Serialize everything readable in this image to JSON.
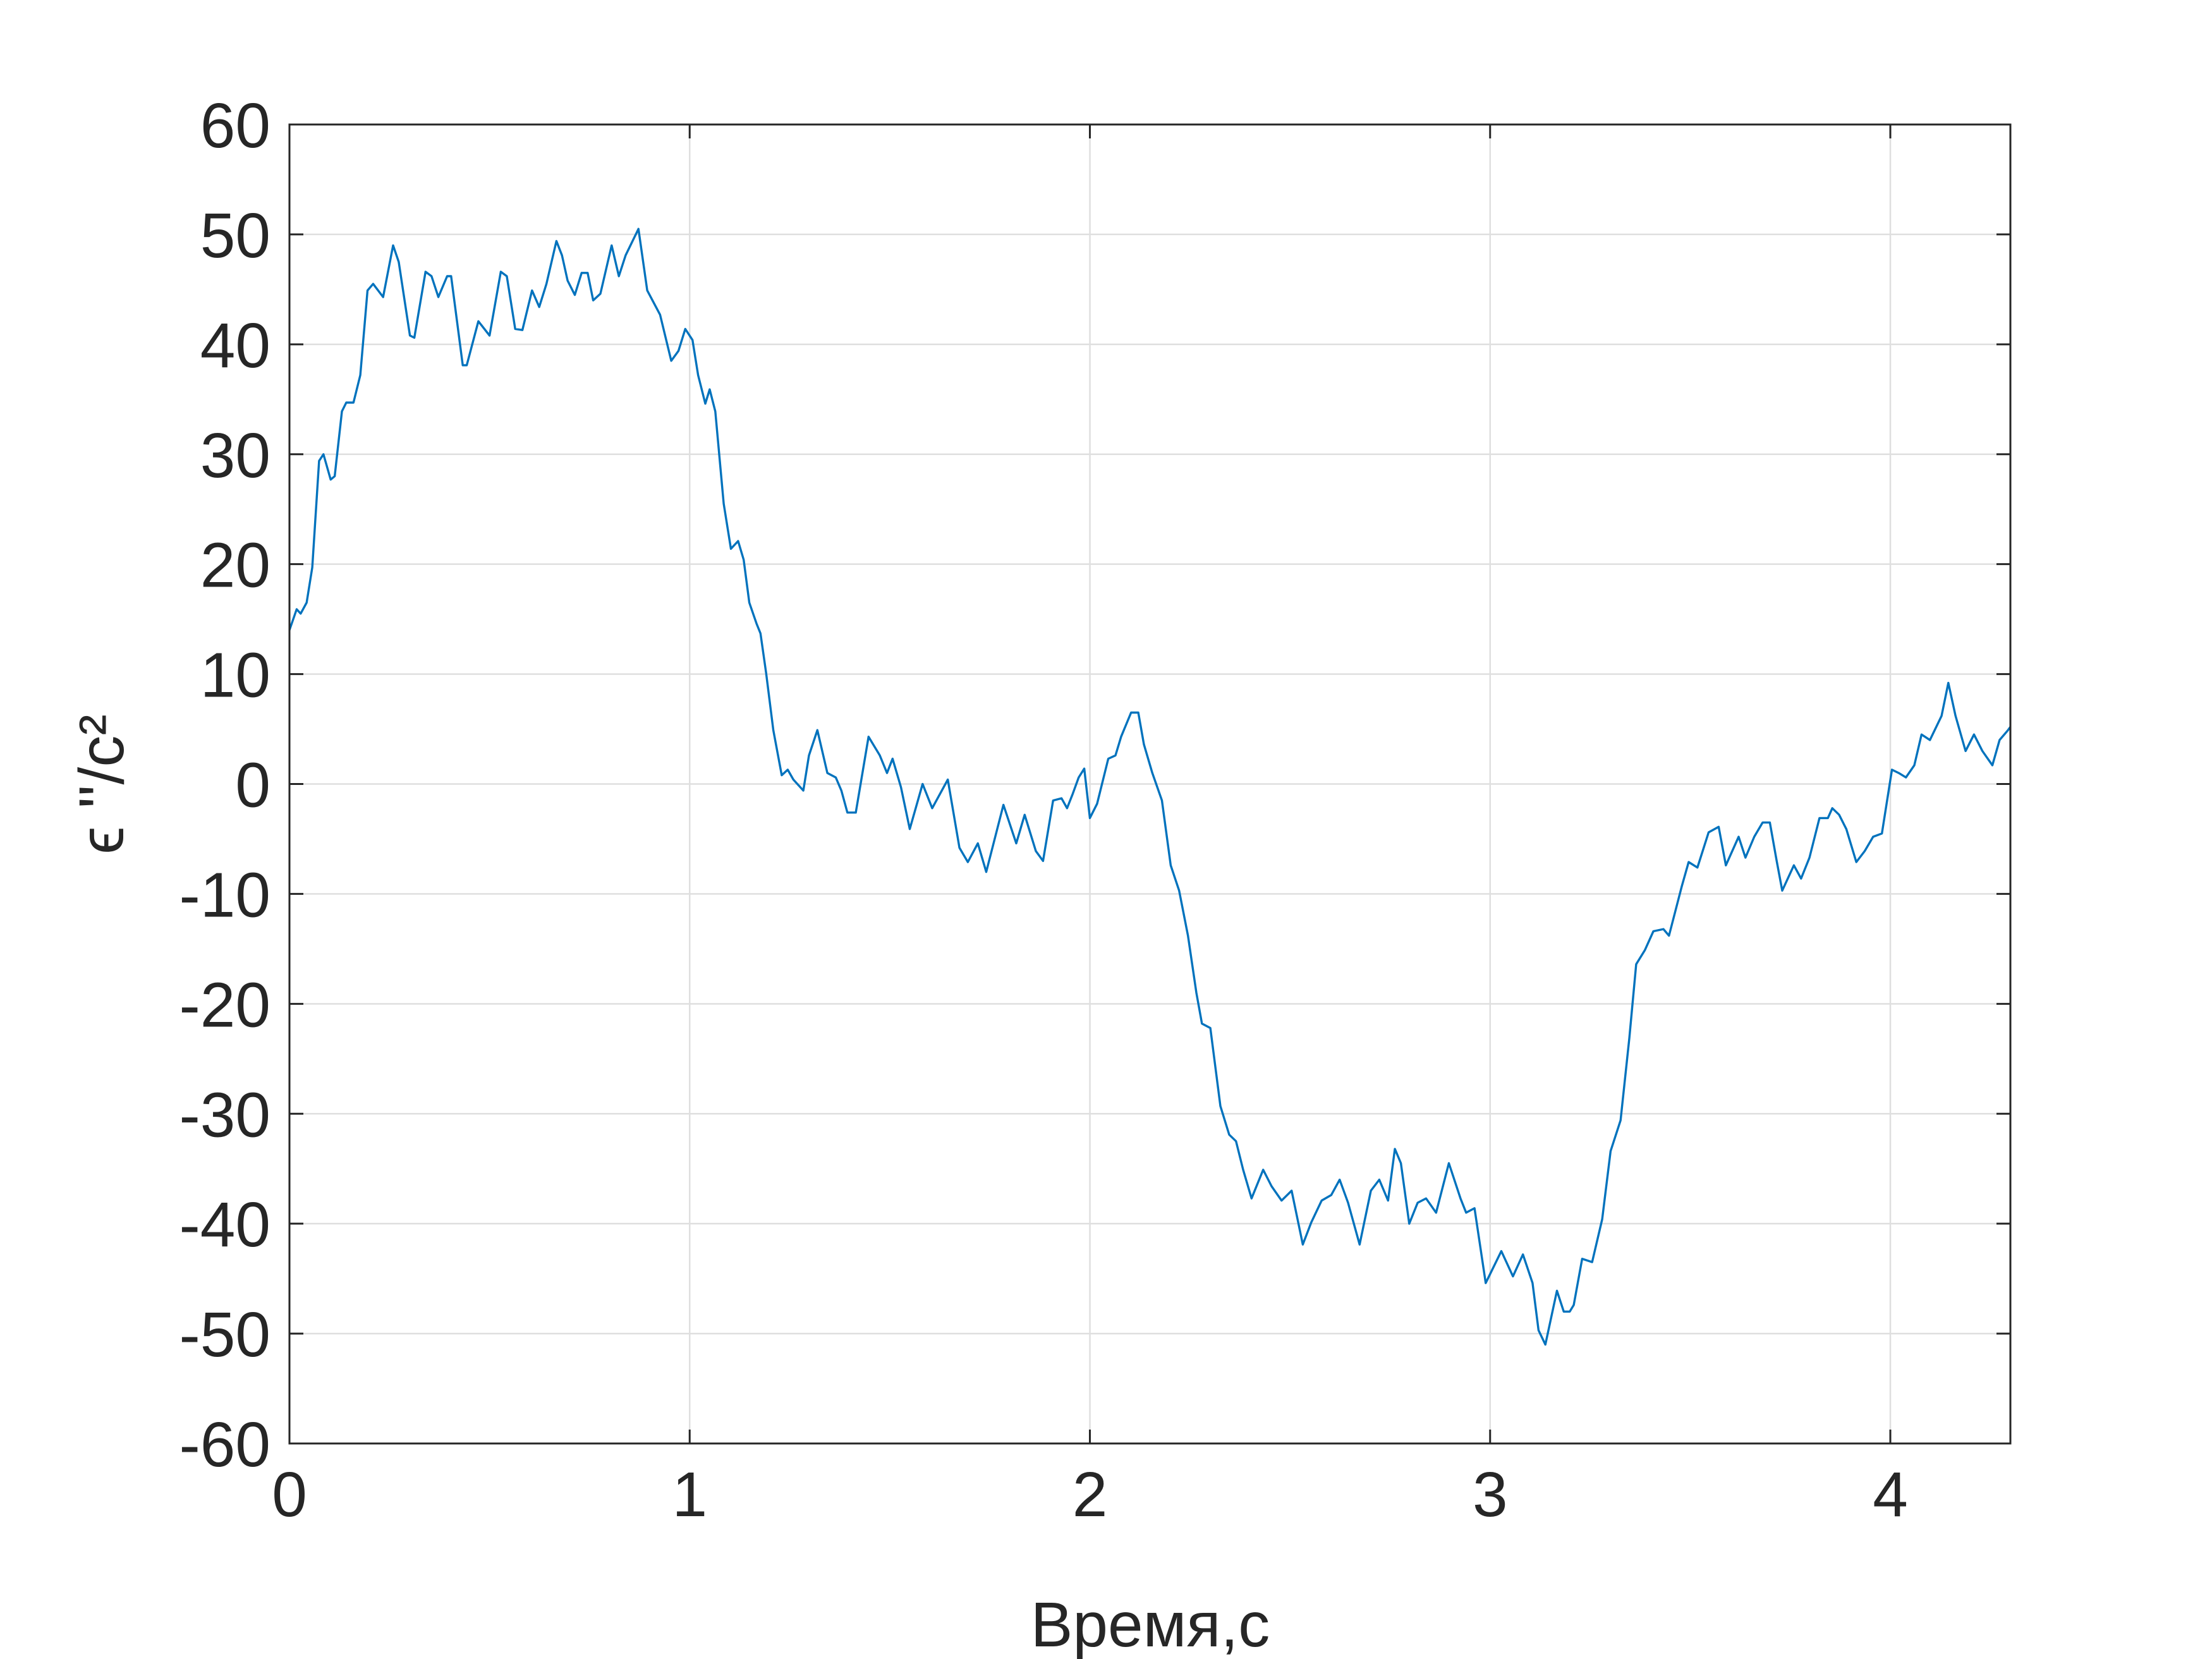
{
  "chart_data": {
    "type": "line",
    "xlabel": "Время,с",
    "ylabel": "ϵ ''/с²",
    "xlim": [
      0,
      4.3
    ],
    "xticks": [
      0,
      1,
      2,
      3,
      4
    ],
    "ylim": [
      -60,
      60
    ],
    "yticks": [
      -60,
      -50,
      -40,
      -30,
      -20,
      -10,
      0,
      10,
      20,
      30,
      40,
      50,
      60
    ],
    "grid": true,
    "color": "#0072bd",
    "x": [
      0,
      0.018,
      0.028,
      0.043,
      0.057,
      0.074,
      0.085,
      0.103,
      0.113,
      0.131,
      0.142,
      0.16,
      0.177,
      0.195,
      0.209,
      0.234,
      0.259,
      0.273,
      0.301,
      0.312,
      0.34,
      0.355,
      0.372,
      0.394,
      0.404,
      0.433,
      0.443,
      0.472,
      0.5,
      0.528,
      0.543,
      0.564,
      0.582,
      0.606,
      0.624,
      0.642,
      0.667,
      0.681,
      0.695,
      0.713,
      0.73,
      0.745,
      0.759,
      0.777,
      0.805,
      0.823,
      0.84,
      0.872,
      0.894,
      0.926,
      0.954,
      0.972,
      0.989,
      1.007,
      1.021,
      1.039,
      1.05,
      1.064,
      1.085,
      1.103,
      1.121,
      1.135,
      1.149,
      1.167,
      1.177,
      1.191,
      1.209,
      1.23,
      1.245,
      1.259,
      1.284,
      1.298,
      1.319,
      1.344,
      1.365,
      1.379,
      1.394,
      1.415,
      1.447,
      1.475,
      1.493,
      1.507,
      1.528,
      1.55,
      1.582,
      1.606,
      1.645,
      1.674,
      1.695,
      1.72,
      1.741,
      1.784,
      1.816,
      1.837,
      1.865,
      1.883,
      1.908,
      1.929,
      1.943,
      1.957,
      1.972,
      1.986,
      2,
      2.018,
      2.046,
      2.064,
      2.078,
      2.103,
      2.121,
      2.135,
      2.156,
      2.18,
      2.202,
      2.223,
      2.245,
      2.266,
      2.28,
      2.301,
      2.326,
      2.348,
      2.365,
      2.383,
      2.404,
      2.433,
      2.454,
      2.479,
      2.504,
      2.532,
      2.553,
      2.579,
      2.603,
      2.624,
      2.645,
      2.674,
      2.702,
      2.723,
      2.745,
      2.762,
      2.777,
      2.798,
      2.819,
      2.84,
      2.865,
      2.897,
      2.926,
      2.94,
      2.961,
      2.989,
      3.028,
      3.057,
      3.082,
      3.106,
      3.121,
      3.138,
      3.167,
      3.184,
      3.199,
      3.209,
      3.23,
      3.255,
      3.28,
      3.301,
      3.326,
      3.348,
      3.365,
      3.387,
      3.408,
      3.433,
      3.447,
      3.479,
      3.496,
      3.518,
      3.546,
      3.571,
      3.589,
      3.621,
      3.638,
      3.66,
      3.681,
      3.699,
      3.716,
      3.73,
      3.759,
      3.777,
      3.798,
      3.823,
      3.844,
      3.855,
      3.872,
      3.89,
      3.915,
      3.936,
      3.957,
      3.979,
      4.004,
      4.021,
      4.039,
      4.06,
      4.078,
      4.099,
      4.128,
      4.145,
      4.163,
      4.188,
      4.209,
      4.23,
      4.255,
      4.273,
      4.294,
      4.3
    ],
    "values": [
      14,
      15.9,
      15.5,
      16.5,
      19.7,
      29.4,
      30,
      27.7,
      28,
      33.9,
      34.7,
      34.7,
      37.2,
      44.9,
      45.5,
      44.3,
      49,
      47.5,
      40.8,
      40.6,
      46.6,
      46.2,
      44.3,
      46.2,
      46.2,
      38.1,
      38.1,
      42.1,
      40.8,
      46.6,
      46.2,
      41.4,
      41.3,
      44.9,
      43.4,
      45.5,
      49.4,
      48.1,
      45.8,
      44.5,
      46.5,
      46.5,
      44,
      44.6,
      49,
      46.2,
      48.1,
      50.5,
      44.9,
      42.7,
      38.5,
      39.4,
      41.4,
      40.4,
      37.2,
      34.6,
      35.9,
      33.9,
      25.5,
      21.4,
      22.1,
      20.4,
      16.5,
      14.6,
      13.7,
      10.1,
      4.9,
      0.8,
      1.3,
      0.4,
      -0.6,
      2.6,
      4.9,
      1,
      0.6,
      -0.6,
      -2.6,
      -2.6,
      4.3,
      2.6,
      1,
      2.3,
      -0.3,
      -4.1,
      0,
      -2.2,
      0.4,
      -5.8,
      -7.1,
      -5.4,
      -8,
      -1.9,
      -5.4,
      -2.8,
      -6.1,
      -7,
      -1.5,
      -1.3,
      -2.2,
      -0.9,
      0.6,
      1.4,
      -3.1,
      -1.8,
      2.3,
      2.6,
      4.3,
      6.5,
      6.5,
      3.6,
      1,
      -1.5,
      -7.4,
      -9.7,
      -13.8,
      -19,
      -21.8,
      -22.2,
      -29.3,
      -31.9,
      -32.5,
      -35.1,
      -37.7,
      -35.1,
      -36.6,
      -37.9,
      -37,
      -41.9,
      -39.9,
      -37.9,
      -37.4,
      -36,
      -38.1,
      -41.9,
      -37,
      -36,
      -37.9,
      -33.2,
      -34.5,
      -40,
      -38.1,
      -37.7,
      -39,
      -34.5,
      -37.7,
      -39,
      -38.6,
      -45.4,
      -42.5,
      -44.8,
      -42.8,
      -45.4,
      -49.7,
      -51,
      -46.1,
      -48,
      -48,
      -47.4,
      -43.2,
      -43.5,
      -39.6,
      -33.4,
      -30.6,
      -23.1,
      -16.4,
      -15.1,
      -13.4,
      -13.2,
      -13.8,
      -9.3,
      -7.1,
      -7.6,
      -4.4,
      -3.9,
      -7.4,
      -4.8,
      -6.7,
      -4.8,
      -3.5,
      -3.5,
      -7,
      -9.7,
      -7.4,
      -8.6,
      -6.7,
      -3.1,
      -3.1,
      -2.2,
      -2.8,
      -4.1,
      -7.1,
      -6.1,
      -4.8,
      -4.5,
      1.3,
      1,
      0.6,
      1.7,
      4.5,
      4,
      6.2,
      9.2,
      6.2,
      3,
      4.5,
      3,
      1.7,
      4,
      4.9,
      5.2
    ]
  }
}
